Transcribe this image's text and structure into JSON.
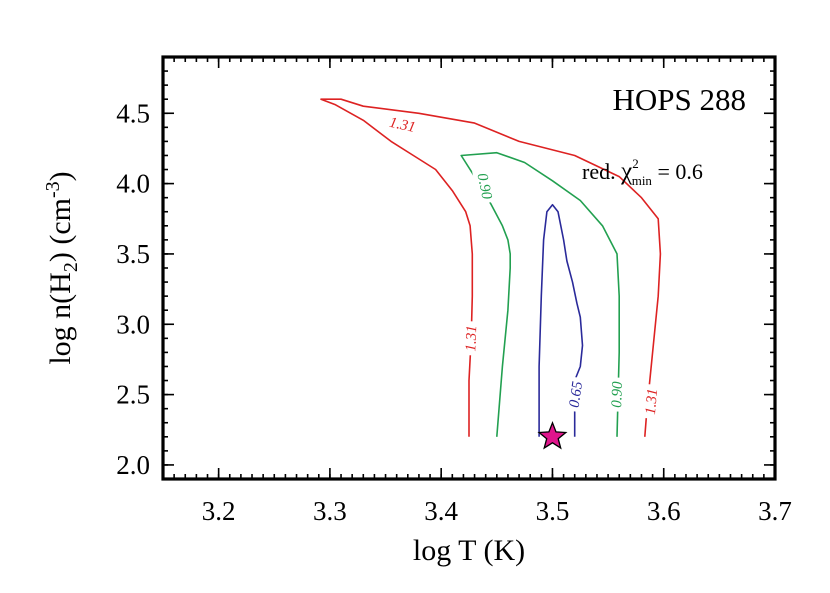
{
  "chart_data": {
    "type": "contour",
    "title": "HOPS 288",
    "xlabel": "log T (K)",
    "ylabel": "log n(H2) (cm-3)",
    "xlim": [
      3.15,
      3.7
    ],
    "ylim": [
      1.9,
      4.9
    ],
    "xticks": [
      "3.2",
      "3.3",
      "3.4",
      "3.5",
      "3.6",
      "3.7"
    ],
    "yticks": [
      "2.0",
      "2.5",
      "3.0",
      "3.5",
      "4.0",
      "4.5"
    ],
    "annotation": {
      "prefix": "red. ",
      "symbol": "χ",
      "superscript": "2",
      "subscript": "min",
      "value_text": " =  0.6"
    },
    "contours": [
      {
        "level": "1.31",
        "color": "#dd2222",
        "x": [
          3.425,
          3.425,
          3.427,
          3.428,
          3.428,
          3.426,
          3.422,
          3.41,
          3.395,
          3.375,
          3.355,
          3.33,
          3.305,
          3.292,
          3.31,
          3.33,
          3.38,
          3.43,
          3.47,
          3.52,
          3.56,
          3.58,
          3.595,
          3.597,
          3.595,
          3.59,
          3.585,
          3.583
        ],
        "y": [
          2.2,
          2.6,
          2.9,
          3.2,
          3.5,
          3.7,
          3.8,
          3.95,
          4.1,
          4.2,
          4.3,
          4.45,
          4.56,
          4.6,
          4.6,
          4.55,
          4.5,
          4.43,
          4.3,
          4.2,
          4.05,
          3.9,
          3.75,
          3.5,
          3.2,
          2.8,
          2.4,
          2.2
        ]
      },
      {
        "level": "0.90",
        "color": "#22a050",
        "x": [
          3.45,
          3.455,
          3.46,
          3.462,
          3.462,
          3.46,
          3.455,
          3.445,
          3.43,
          3.418,
          3.45,
          3.475,
          3.5,
          3.525,
          3.545,
          3.558,
          3.56,
          3.56,
          3.558
        ],
        "y": [
          2.2,
          2.7,
          3.1,
          3.4,
          3.5,
          3.6,
          3.7,
          3.85,
          4.05,
          4.2,
          4.22,
          4.15,
          4.02,
          3.88,
          3.7,
          3.5,
          3.2,
          2.8,
          2.2
        ]
      },
      {
        "level": "0.65",
        "color": "#2a2a9a",
        "x": [
          3.488,
          3.488,
          3.49,
          3.492,
          3.495,
          3.5,
          3.505,
          3.51,
          3.513,
          3.518,
          3.522,
          3.525,
          3.527,
          3.525,
          3.52,
          3.52
        ],
        "y": [
          2.2,
          2.7,
          3.2,
          3.6,
          3.8,
          3.85,
          3.8,
          3.6,
          3.45,
          3.3,
          3.15,
          3.05,
          2.85,
          2.7,
          2.6,
          2.2
        ]
      }
    ],
    "contour_labels": [
      {
        "text": "1.31",
        "x": 3.365,
        "y": 4.41,
        "angle": 12,
        "color": "#dd2222"
      },
      {
        "text": "1.31",
        "x": 3.428,
        "y": 2.9,
        "angle": -88,
        "color": "#dd2222"
      },
      {
        "text": "1.31",
        "x": 3.59,
        "y": 2.45,
        "angle": -85,
        "color": "#dd2222"
      },
      {
        "text": "0.90",
        "x": 3.438,
        "y": 3.98,
        "angle": 78,
        "color": "#22a050"
      },
      {
        "text": "0.90",
        "x": 3.559,
        "y": 2.5,
        "angle": -88,
        "color": "#22a050"
      },
      {
        "text": "0.65",
        "x": 3.522,
        "y": 2.5,
        "angle": -82,
        "color": "#2a2a9a"
      }
    ],
    "marker": {
      "shape": "star",
      "x": 3.5,
      "y": 2.2,
      "fill": "#e0158c",
      "stroke": "#000000"
    },
    "grid": false,
    "legend": "none"
  }
}
